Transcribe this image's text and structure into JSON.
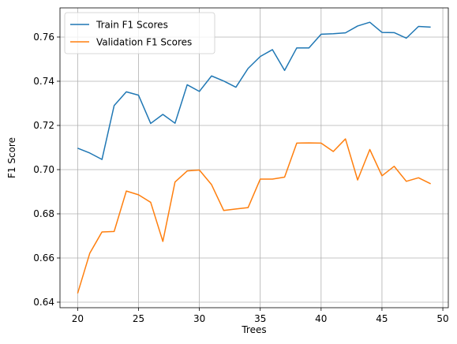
{
  "chart_data": {
    "type": "line",
    "title": "",
    "xlabel": "Trees",
    "ylabel": "F1 Score",
    "xlim": [
      18.55,
      50.45
    ],
    "ylim": [
      0.6375,
      0.7732
    ],
    "x_ticks": [
      20,
      25,
      30,
      35,
      40,
      45,
      50
    ],
    "y_ticks": [
      0.64,
      0.66,
      0.68,
      0.7,
      0.72,
      0.74,
      0.76
    ],
    "grid": true,
    "legend_position": "upper-left",
    "x": [
      20,
      21,
      22,
      23,
      24,
      25,
      26,
      27,
      28,
      29,
      30,
      31,
      32,
      33,
      34,
      35,
      36,
      37,
      38,
      39,
      40,
      41,
      42,
      43,
      44,
      45,
      46,
      47,
      48,
      49
    ],
    "series": [
      {
        "name": "Train F1 Scores",
        "color": "#1f77b4",
        "values": [
          0.7097,
          0.7075,
          0.7046,
          0.729,
          0.7352,
          0.7337,
          0.7209,
          0.725,
          0.721,
          0.7384,
          0.7354,
          0.7424,
          0.7401,
          0.7373,
          0.7458,
          0.7512,
          0.7543,
          0.7449,
          0.7551,
          0.7551,
          0.7613,
          0.7615,
          0.7619,
          0.765,
          0.7667,
          0.7621,
          0.762,
          0.7595,
          0.7648,
          0.7645
        ]
      },
      {
        "name": "Validation F1 Scores",
        "color": "#ff7f0e",
        "values": [
          0.644,
          0.6622,
          0.6718,
          0.672,
          0.6903,
          0.6886,
          0.6852,
          0.6675,
          0.6944,
          0.6994,
          0.6998,
          0.6932,
          0.6815,
          0.6822,
          0.6828,
          0.6957,
          0.6957,
          0.6966,
          0.712,
          0.7121,
          0.712,
          0.7082,
          0.7139,
          0.6953,
          0.7091,
          0.6972,
          0.7015,
          0.6947,
          0.6963,
          0.6936
        ]
      }
    ]
  }
}
